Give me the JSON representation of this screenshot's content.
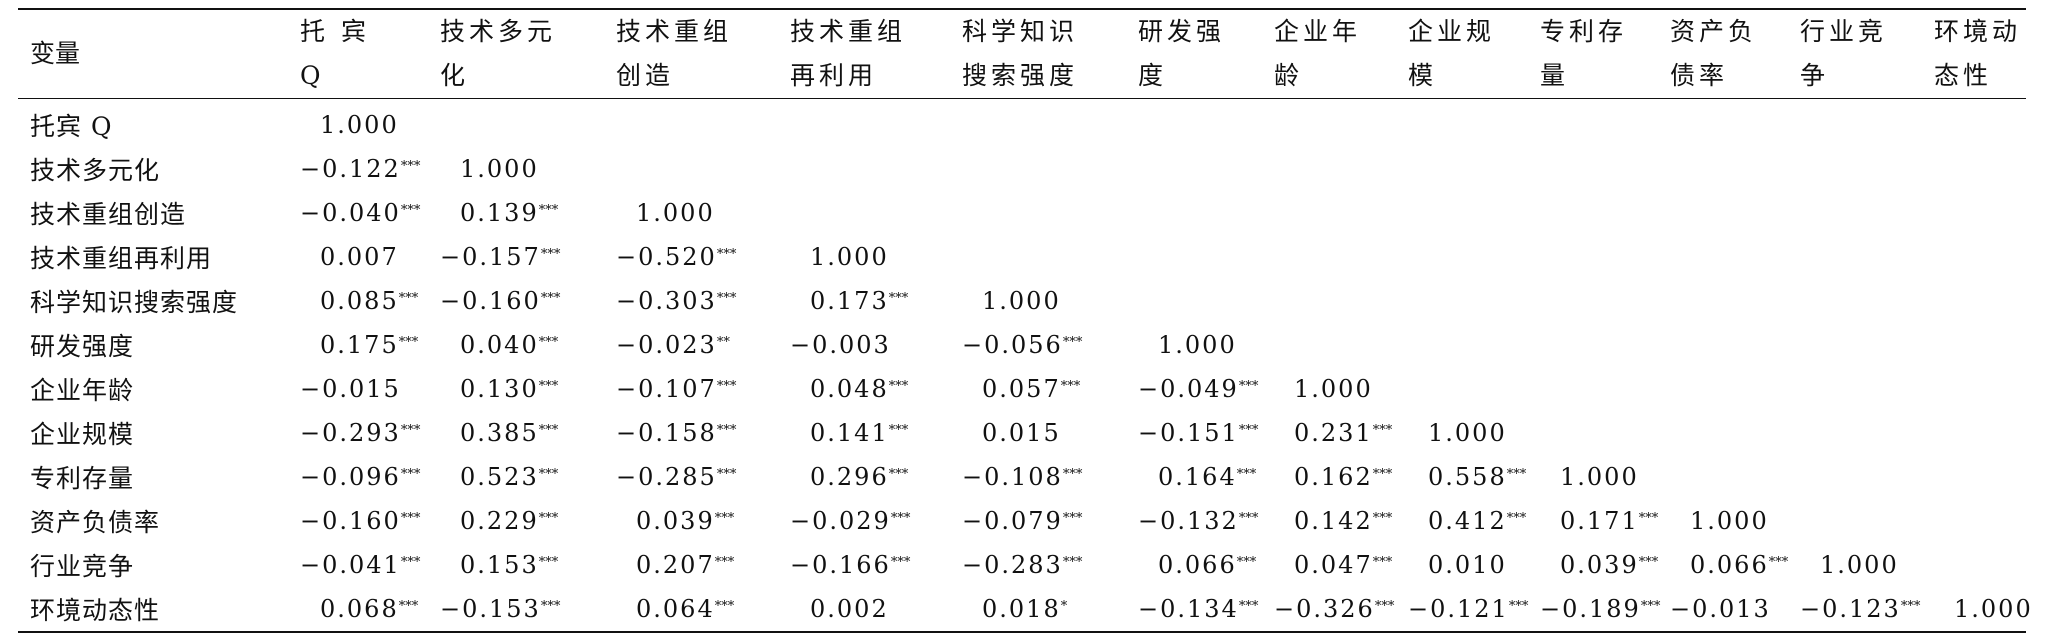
{
  "table": {
    "corner_label": "变量",
    "columns": [
      [
        "托 宾",
        "Q"
      ],
      [
        "技术多元",
        "化"
      ],
      [
        "技术重组",
        "创造"
      ],
      [
        "技术重组",
        "再利用"
      ],
      [
        "科学知识",
        "搜索强度"
      ],
      [
        "研发强",
        "度"
      ],
      [
        "企业年",
        "龄"
      ],
      [
        "企业规",
        "模"
      ],
      [
        "专利存",
        "量"
      ],
      [
        "资产负",
        "债率"
      ],
      [
        "行业竞",
        "争"
      ],
      [
        "环境动",
        "态性"
      ]
    ],
    "rows": [
      {
        "label": "托宾 Q",
        "cells": [
          [
            "1.000",
            ""
          ]
        ]
      },
      {
        "label": "技术多元化",
        "cells": [
          [
            "−0.122",
            "***"
          ],
          [
            "1.000",
            ""
          ]
        ]
      },
      {
        "label": "技术重组创造",
        "cells": [
          [
            "−0.040",
            "***"
          ],
          [
            "0.139",
            "***"
          ],
          [
            "1.000",
            ""
          ]
        ]
      },
      {
        "label": "技术重组再利用",
        "cells": [
          [
            "0.007",
            ""
          ],
          [
            "−0.157",
            "***"
          ],
          [
            "−0.520",
            "***"
          ],
          [
            "1.000",
            ""
          ]
        ]
      },
      {
        "label": "科学知识搜索强度",
        "cells": [
          [
            "0.085",
            "***"
          ],
          [
            "−0.160",
            "***"
          ],
          [
            "−0.303",
            "***"
          ],
          [
            "0.173",
            "***"
          ],
          [
            "1.000",
            ""
          ]
        ]
      },
      {
        "label": "研发强度",
        "cells": [
          [
            "0.175",
            "***"
          ],
          [
            "0.040",
            "***"
          ],
          [
            "−0.023",
            "**"
          ],
          [
            "−0.003",
            ""
          ],
          [
            "−0.056",
            "***"
          ],
          [
            "1.000",
            ""
          ]
        ]
      },
      {
        "label": "企业年龄",
        "cells": [
          [
            "−0.015",
            ""
          ],
          [
            "0.130",
            "***"
          ],
          [
            "−0.107",
            "***"
          ],
          [
            "0.048",
            "***"
          ],
          [
            "0.057",
            "***"
          ],
          [
            "−0.049",
            "***"
          ],
          [
            "1.000",
            ""
          ]
        ]
      },
      {
        "label": "企业规模",
        "cells": [
          [
            "−0.293",
            "***"
          ],
          [
            "0.385",
            "***"
          ],
          [
            "−0.158",
            "***"
          ],
          [
            "0.141",
            "***"
          ],
          [
            "0.015",
            ""
          ],
          [
            "−0.151",
            "***"
          ],
          [
            "0.231",
            "***"
          ],
          [
            "1.000",
            ""
          ]
        ]
      },
      {
        "label": "专利存量",
        "cells": [
          [
            "−0.096",
            "***"
          ],
          [
            "0.523",
            "***"
          ],
          [
            "−0.285",
            "***"
          ],
          [
            "0.296",
            "***"
          ],
          [
            "−0.108",
            "***"
          ],
          [
            "0.164",
            "***"
          ],
          [
            "0.162",
            "***"
          ],
          [
            "0.558",
            "***"
          ],
          [
            "1.000",
            ""
          ]
        ]
      },
      {
        "label": "资产负债率",
        "cells": [
          [
            "−0.160",
            "***"
          ],
          [
            "0.229",
            "***"
          ],
          [
            "0.039",
            "***"
          ],
          [
            "−0.029",
            "***"
          ],
          [
            "−0.079",
            "***"
          ],
          [
            "−0.132",
            "***"
          ],
          [
            "0.142",
            "***"
          ],
          [
            "0.412",
            "***"
          ],
          [
            "0.171",
            "***"
          ],
          [
            "1.000",
            ""
          ]
        ]
      },
      {
        "label": "行业竞争",
        "cells": [
          [
            "−0.041",
            "***"
          ],
          [
            "0.153",
            "***"
          ],
          [
            "0.207",
            "***"
          ],
          [
            "−0.166",
            "***"
          ],
          [
            "−0.283",
            "***"
          ],
          [
            "0.066",
            "***"
          ],
          [
            "0.047",
            "***"
          ],
          [
            "0.010",
            ""
          ],
          [
            "0.039",
            "***"
          ],
          [
            "0.066",
            "***"
          ],
          [
            "1.000",
            ""
          ]
        ]
      },
      {
        "label": "环境动态性",
        "cells": [
          [
            "0.068",
            "***"
          ],
          [
            "−0.153",
            "***"
          ],
          [
            "0.064",
            "***"
          ],
          [
            "0.002",
            ""
          ],
          [
            "0.018",
            "*"
          ],
          [
            "−0.134",
            "***"
          ],
          [
            "−0.326",
            "***"
          ],
          [
            "−0.121",
            "***"
          ],
          [
            "−0.189",
            "***"
          ],
          [
            "−0.013",
            ""
          ],
          [
            "−0.123",
            "***"
          ],
          [
            "1.000",
            ""
          ]
        ]
      }
    ]
  }
}
